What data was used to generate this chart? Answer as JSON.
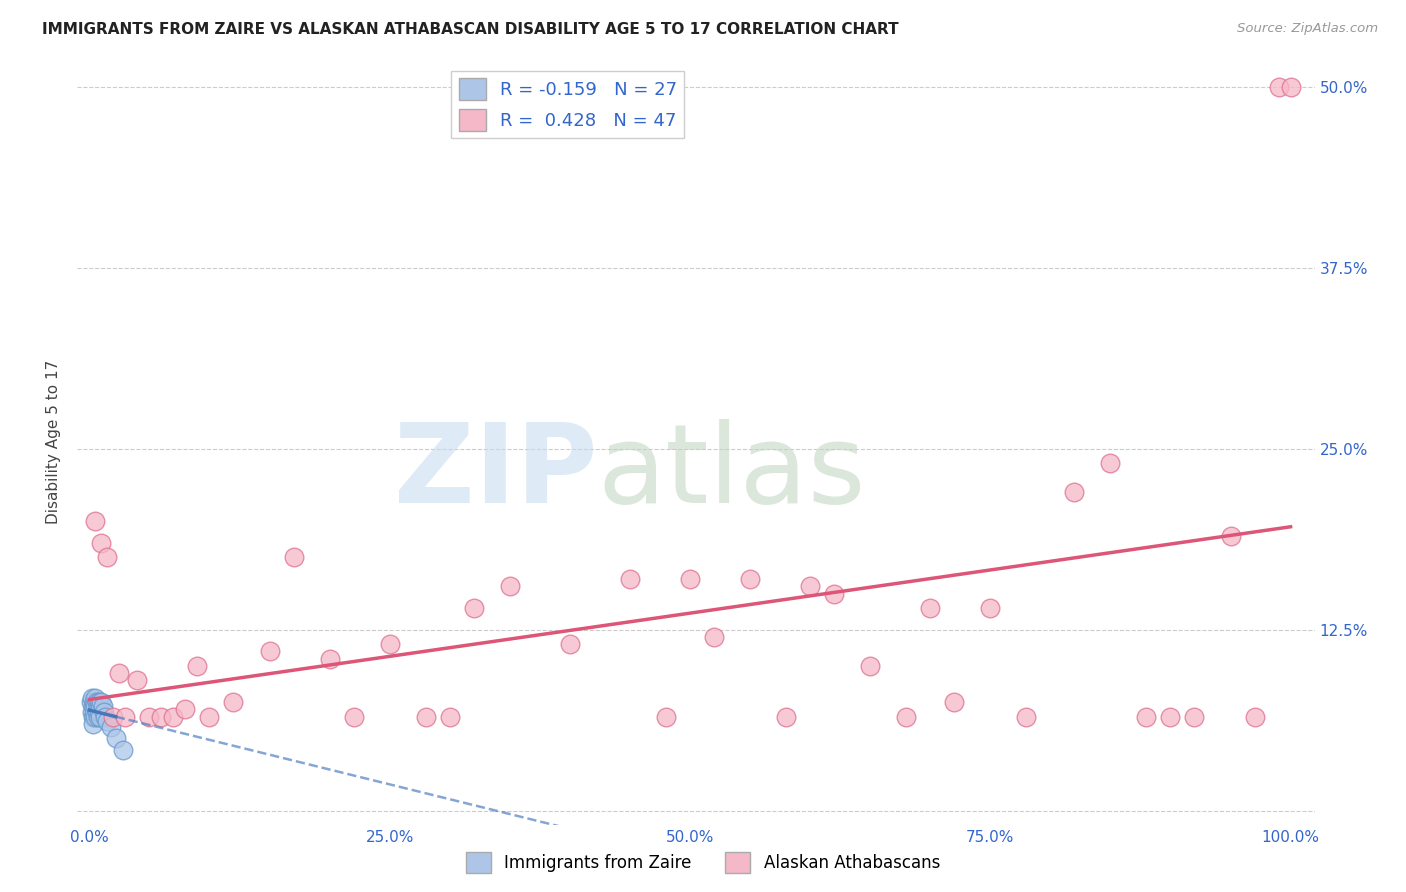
{
  "title": "IMMIGRANTS FROM ZAIRE VS ALASKAN ATHABASCAN DISABILITY AGE 5 TO 17 CORRELATION CHART",
  "source": "Source: ZipAtlas.com",
  "ylabel": "Disability Age 5 to 17",
  "xlim": [
    -0.01,
    1.02
  ],
  "ylim": [
    -0.01,
    0.52
  ],
  "xticks": [
    0.0,
    0.25,
    0.5,
    0.75,
    1.0
  ],
  "xtick_labels": [
    "0.0%",
    "25.0%",
    "50.0%",
    "75.0%",
    "100.0%"
  ],
  "yticks": [
    0.0,
    0.125,
    0.25,
    0.375,
    0.5
  ],
  "ytick_labels": [
    "",
    "12.5%",
    "25.0%",
    "37.5%",
    "50.0%"
  ],
  "R_blue": -0.159,
  "N_blue": 27,
  "R_pink": 0.428,
  "N_pink": 47,
  "blue_color": "#adc6e8",
  "blue_edge": "#6699cc",
  "pink_color": "#f5b8c8",
  "pink_edge": "#e07090",
  "trend_blue_color": "#4477bb",
  "trend_pink_color": "#dd5577",
  "blue_points_x": [
    0.001,
    0.002,
    0.002,
    0.003,
    0.003,
    0.003,
    0.004,
    0.004,
    0.005,
    0.005,
    0.005,
    0.006,
    0.006,
    0.007,
    0.007,
    0.008,
    0.008,
    0.009,
    0.009,
    0.01,
    0.011,
    0.012,
    0.013,
    0.015,
    0.018,
    0.022,
    0.028
  ],
  "blue_points_y": [
    0.075,
    0.078,
    0.068,
    0.072,
    0.065,
    0.06,
    0.075,
    0.068,
    0.078,
    0.072,
    0.065,
    0.075,
    0.068,
    0.072,
    0.065,
    0.075,
    0.068,
    0.072,
    0.065,
    0.075,
    0.072,
    0.068,
    0.065,
    0.062,
    0.058,
    0.05,
    0.042
  ],
  "pink_points_x": [
    0.005,
    0.01,
    0.015,
    0.02,
    0.025,
    0.03,
    0.04,
    0.05,
    0.06,
    0.07,
    0.08,
    0.09,
    0.1,
    0.12,
    0.15,
    0.17,
    0.2,
    0.22,
    0.25,
    0.28,
    0.3,
    0.32,
    0.35,
    0.4,
    0.45,
    0.48,
    0.5,
    0.52,
    0.55,
    0.58,
    0.6,
    0.62,
    0.65,
    0.68,
    0.7,
    0.72,
    0.75,
    0.78,
    0.82,
    0.85,
    0.88,
    0.9,
    0.92,
    0.95,
    0.97,
    0.99,
    1.0
  ],
  "pink_points_y": [
    0.2,
    0.185,
    0.175,
    0.065,
    0.095,
    0.065,
    0.09,
    0.065,
    0.065,
    0.065,
    0.07,
    0.1,
    0.065,
    0.075,
    0.11,
    0.175,
    0.105,
    0.065,
    0.115,
    0.065,
    0.065,
    0.14,
    0.155,
    0.115,
    0.16,
    0.065,
    0.16,
    0.12,
    0.16,
    0.065,
    0.155,
    0.15,
    0.1,
    0.065,
    0.14,
    0.075,
    0.14,
    0.065,
    0.22,
    0.24,
    0.065,
    0.065,
    0.065,
    0.19,
    0.065,
    0.5,
    0.5
  ]
}
